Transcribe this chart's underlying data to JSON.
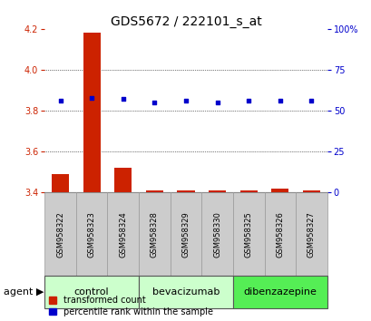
{
  "title": "GDS5672 / 222101_s_at",
  "samples": [
    "GSM958322",
    "GSM958323",
    "GSM958324",
    "GSM958328",
    "GSM958329",
    "GSM958330",
    "GSM958325",
    "GSM958326",
    "GSM958327"
  ],
  "transformed_counts": [
    3.49,
    4.18,
    3.52,
    3.41,
    3.41,
    3.41,
    3.41,
    3.42,
    3.41
  ],
  "percentile_ranks": [
    56,
    58,
    57,
    55,
    56,
    55,
    56,
    56,
    56
  ],
  "ylim_left": [
    3.4,
    4.2
  ],
  "yticks_left": [
    3.4,
    3.6,
    3.8,
    4.0,
    4.2
  ],
  "yticks_right": [
    0,
    25,
    50,
    75,
    100
  ],
  "ylim_right": [
    0,
    100
  ],
  "bar_color": "#cc2200",
  "dot_color": "#0000cc",
  "groups": [
    {
      "label": "control",
      "indices": [
        0,
        1,
        2
      ],
      "color": "#ccffcc"
    },
    {
      "label": "bevacizumab",
      "indices": [
        3,
        4,
        5
      ],
      "color": "#ccffcc"
    },
    {
      "label": "dibenzazepine",
      "indices": [
        6,
        7,
        8
      ],
      "color": "#55ee55"
    }
  ],
  "agent_label": "agent",
  "legend_bar_label": "transformed count",
  "legend_dot_label": "percentile rank within the sample",
  "title_fontsize": 10,
  "tick_fontsize": 7,
  "label_fontsize": 8,
  "group_fontsize": 8,
  "sample_fontsize": 6,
  "legend_fontsize": 7,
  "sample_bg_color": "#cccccc",
  "sample_border_color": "#999999",
  "bg_color": "#ffffff"
}
